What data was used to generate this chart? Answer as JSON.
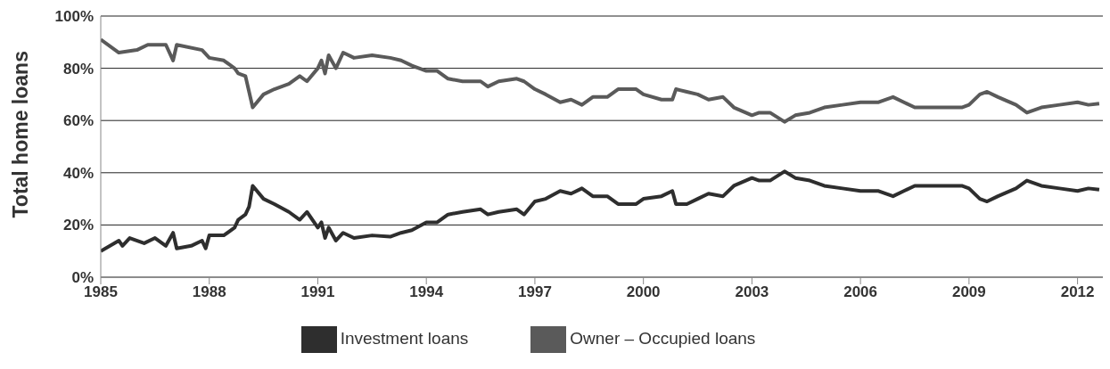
{
  "chart_data": {
    "type": "line",
    "ylabel": "Total home loans",
    "xlim": [
      1985,
      2012.7
    ],
    "xticks": [
      1985,
      1988,
      1991,
      1994,
      1997,
      2000,
      2003,
      2006,
      2009,
      2012
    ],
    "ylim": [
      0,
      100
    ],
    "yticks": [
      {
        "value": 0,
        "label": "0%"
      },
      {
        "value": 20,
        "label": "20%"
      },
      {
        "value": 40,
        "label": "40%"
      },
      {
        "value": 60,
        "label": "60%"
      },
      {
        "value": 80,
        "label": "80%"
      },
      {
        "value": 100,
        "label": "100%"
      }
    ],
    "grid": "y",
    "legend": "bottom",
    "marker": "none",
    "line_style": "solid",
    "series": [
      {
        "name": "Investment loans",
        "color": "#2e2e2e",
        "x": [
          1985,
          1985.5,
          1985.6,
          1985.8,
          1986.2,
          1986.5,
          1986.8,
          1987,
          1987.1,
          1987.5,
          1987.8,
          1987.9,
          1988,
          1988.4,
          1988.7,
          1988.8,
          1989,
          1989.1,
          1989.2,
          1989.5,
          1989.8,
          1990.2,
          1990.5,
          1990.7,
          1991,
          1991.1,
          1991.2,
          1991.3,
          1991.5,
          1991.7,
          1992,
          1992.5,
          1993,
          1993.3,
          1993.6,
          1994,
          1994.3,
          1994.6,
          1995,
          1995.5,
          1995.7,
          1996,
          1996.5,
          1996.7,
          1997,
          1997.3,
          1997.7,
          1998,
          1998.3,
          1998.6,
          1999,
          1999.3,
          1999.8,
          2000,
          2000.5,
          2000.8,
          2000.9,
          2001.2,
          2001.5,
          2001.8,
          2002.2,
          2002.5,
          2003,
          2003.2,
          2003.5,
          2003.9,
          2004.2,
          2004.6,
          2005,
          2005.5,
          2006,
          2006.5,
          2006.9,
          2007.2,
          2007.5,
          2008,
          2008.5,
          2008.8,
          2009,
          2009.3,
          2009.5,
          2009.8,
          2010.3,
          2010.6,
          2011,
          2011.5,
          2012,
          2012.3,
          2012.6
        ],
        "values": [
          10,
          14,
          12,
          15,
          13,
          15,
          12,
          17,
          11,
          12,
          14,
          11,
          16,
          16,
          19,
          22,
          24,
          27,
          35,
          30,
          28,
          25,
          22,
          25,
          19,
          21,
          15,
          19,
          14,
          17,
          15,
          16,
          15.5,
          17,
          18,
          21,
          21,
          24,
          25,
          26,
          24,
          25,
          26,
          24,
          29,
          30,
          33,
          32,
          34,
          31,
          31,
          28,
          28,
          30,
          31,
          33,
          28,
          28,
          30,
          32,
          31,
          35,
          38,
          37,
          37,
          40.5,
          38,
          37,
          35,
          34,
          33,
          33,
          31,
          33,
          35,
          35,
          35,
          35,
          34,
          30,
          29,
          31,
          34,
          37,
          35,
          34,
          33,
          34,
          33.5
        ]
      },
      {
        "name": "Owner – Occupied loans",
        "color": "#5a5a5a",
        "x": [
          1985,
          1985.5,
          1986,
          1986.3,
          1986.8,
          1987,
          1987.1,
          1987.8,
          1988,
          1988.4,
          1988.7,
          1988.8,
          1989,
          1989.2,
          1989.5,
          1989.8,
          1990.2,
          1990.5,
          1990.7,
          1991,
          1991.1,
          1991.2,
          1991.3,
          1991.5,
          1991.7,
          1992,
          1992.5,
          1993,
          1993.3,
          1993.6,
          1994,
          1994.3,
          1994.6,
          1995,
          1995.5,
          1995.7,
          1996,
          1996.5,
          1996.7,
          1997,
          1997.3,
          1997.7,
          1998,
          1998.3,
          1998.6,
          1999,
          1999.3,
          1999.8,
          2000,
          2000.5,
          2000.8,
          2000.9,
          2001.2,
          2001.5,
          2001.8,
          2002.2,
          2002.5,
          2003,
          2003.2,
          2003.5,
          2003.9,
          2004.2,
          2004.6,
          2005,
          2005.5,
          2006,
          2006.5,
          2006.9,
          2007.2,
          2007.5,
          2008,
          2008.5,
          2008.8,
          2009,
          2009.3,
          2009.5,
          2009.8,
          2010.3,
          2010.6,
          2011,
          2011.5,
          2012,
          2012.3,
          2012.6
        ],
        "values": [
          91,
          86,
          87,
          89,
          89,
          83,
          89,
          87,
          84,
          83,
          80,
          78,
          77,
          65,
          70,
          72,
          74,
          77,
          75,
          80,
          83,
          78,
          85,
          80,
          86,
          84,
          85,
          84,
          83,
          81,
          79,
          79,
          76,
          75,
          75,
          73,
          75,
          76,
          75,
          72,
          70,
          67,
          68,
          66,
          69,
          69,
          72,
          72,
          70,
          68,
          68,
          72,
          71,
          70,
          68,
          69,
          65,
          62,
          63,
          63,
          59.5,
          62,
          63,
          65,
          66,
          67,
          67,
          69,
          67,
          65,
          65,
          65,
          65,
          66,
          70,
          71,
          69,
          66,
          63,
          65,
          66,
          67,
          66,
          66.5
        ]
      }
    ]
  }
}
